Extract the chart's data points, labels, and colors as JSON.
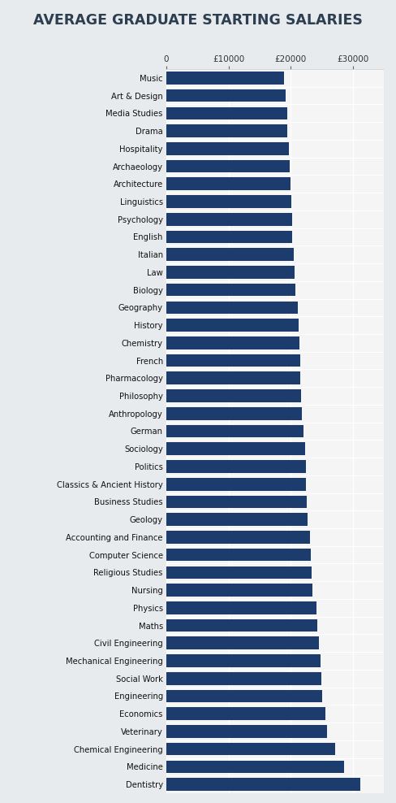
{
  "title": "AVERAGE GRADUATE STARTING SALARIES",
  "title_bg_color": "#d4d8de",
  "bar_color": "#1c3c6e",
  "bg_color": "#e8ebee",
  "plot_bg_color": "#f5f5f5",
  "xlim": [
    0,
    35000
  ],
  "xticks": [
    0,
    10000,
    20000,
    30000
  ],
  "xtick_labels": [
    "0",
    "£10000",
    "£20000",
    "£30000"
  ],
  "categories": [
    "Music",
    "Art & Design",
    "Media Studies",
    "Drama",
    "Hospitality",
    "Archaeology",
    "Architecture",
    "Linguistics",
    "Psychology",
    "English",
    "Italian",
    "Law",
    "Biology",
    "Geography",
    "History",
    "Chemistry",
    "French",
    "Pharmacology",
    "Philosophy",
    "Anthropology",
    "German",
    "Sociology",
    "Politics",
    "Classics & Ancient History",
    "Business Studies",
    "Geology",
    "Accounting and Finance",
    "Computer Science",
    "Religious Studies",
    "Nursing",
    "Physics",
    "Maths",
    "Civil Engineering",
    "Mechanical Engineering",
    "Social Work",
    "Engineering",
    "Economics",
    "Veterinary",
    "Chemical Engineering",
    "Medicine",
    "Dentistry"
  ],
  "values": [
    19000,
    19200,
    19400,
    19500,
    19700,
    19800,
    20000,
    20100,
    20200,
    20300,
    20500,
    20600,
    20800,
    21100,
    21300,
    21400,
    21500,
    21600,
    21700,
    21800,
    22100,
    22300,
    22400,
    22500,
    22600,
    22700,
    23100,
    23300,
    23400,
    23500,
    24100,
    24300,
    24600,
    24800,
    24900,
    25100,
    25600,
    25800,
    27100,
    28600,
    31200
  ]
}
